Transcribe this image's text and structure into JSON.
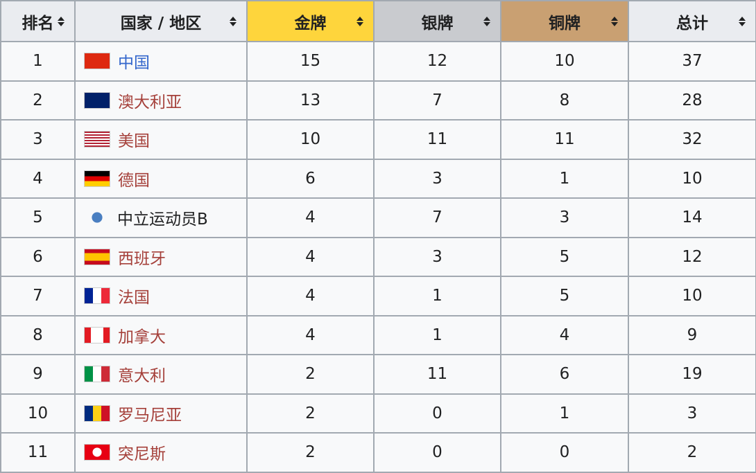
{
  "headers": [
    "排名",
    "国家 / 地区",
    "金牌",
    "银牌",
    "铜牌",
    "总计"
  ],
  "colors": {
    "gold": "#fed53c",
    "silver": "#c9cbcf",
    "bronze": "#c9a072",
    "link": "#3366cc",
    "visited": "#a5403a",
    "header": "#eaecf0"
  },
  "rows": [
    {
      "rank": "1",
      "nation": "中国",
      "gold": "15",
      "silver": "12",
      "bronze": "10",
      "total": "37",
      "flag": "china",
      "link": "blue"
    },
    {
      "rank": "2",
      "nation": "澳大利亚",
      "gold": "13",
      "silver": "7",
      "bronze": "8",
      "total": "28",
      "flag": "australia",
      "link": "red"
    },
    {
      "rank": "3",
      "nation": "美国",
      "gold": "10",
      "silver": "11",
      "bronze": "11",
      "total": "32",
      "flag": "usa",
      "link": "red"
    },
    {
      "rank": "4",
      "nation": "德国",
      "gold": "6",
      "silver": "3",
      "bronze": "1",
      "total": "10",
      "flag": "germany",
      "link": "red"
    },
    {
      "rank": "5",
      "nation": "中立运动员B",
      "gold": "4",
      "silver": "7",
      "bronze": "3",
      "total": "14",
      "flag": "neutral",
      "link": "black"
    },
    {
      "rank": "6",
      "nation": "西班牙",
      "gold": "4",
      "silver": "3",
      "bronze": "5",
      "total": "12",
      "flag": "spain",
      "link": "red"
    },
    {
      "rank": "7",
      "nation": "法国",
      "gold": "4",
      "silver": "1",
      "bronze": "5",
      "total": "10",
      "flag": "france",
      "link": "red"
    },
    {
      "rank": "8",
      "nation": "加拿大",
      "gold": "4",
      "silver": "1",
      "bronze": "4",
      "total": "9",
      "flag": "canada",
      "link": "red"
    },
    {
      "rank": "9",
      "nation": "意大利",
      "gold": "2",
      "silver": "11",
      "bronze": "6",
      "total": "19",
      "flag": "italy",
      "link": "red"
    },
    {
      "rank": "10",
      "nation": "罗马尼亚",
      "gold": "2",
      "silver": "0",
      "bronze": "1",
      "total": "3",
      "flag": "romania",
      "link": "red"
    },
    {
      "rank": "11",
      "nation": "突尼斯",
      "gold": "2",
      "silver": "0",
      "bronze": "0",
      "total": "2",
      "flag": "tunisia",
      "link": "red"
    }
  ]
}
